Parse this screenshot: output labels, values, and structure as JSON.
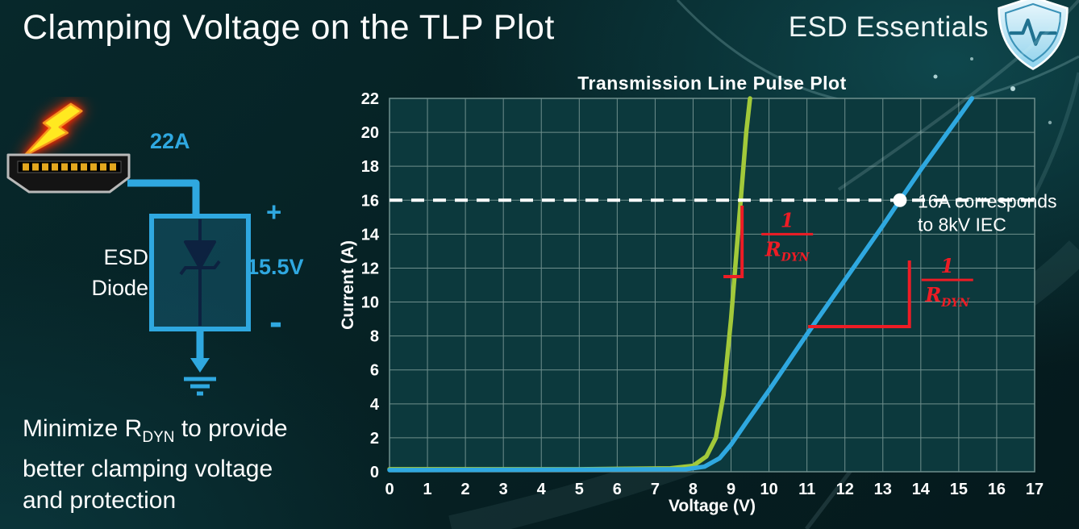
{
  "page": {
    "title": "Clamping Voltage on the TLP Plot",
    "brand": "ESD Essentials"
  },
  "diagram": {
    "surge_current": "22A",
    "device_line1": "ESD",
    "device_line2": "Diode",
    "plus_sign": "+",
    "clamp_voltage": "15.5V",
    "minus_sign": "-"
  },
  "footnote": {
    "line1_pre": "Minimize R",
    "line1_sub": "DYN",
    "line1_post": " to provide",
    "line2": "better clamping voltage",
    "line3": "and protection"
  },
  "chart_data": {
    "type": "line",
    "title": "Transmission Line Pulse Plot",
    "xlabel": "Voltage (V)",
    "ylabel": "Current (A)",
    "xlim": [
      0,
      17
    ],
    "ylim": [
      0,
      22
    ],
    "x_ticks": [
      0,
      1,
      2,
      3,
      4,
      5,
      6,
      7,
      8,
      9,
      10,
      11,
      12,
      13,
      14,
      15,
      16,
      17
    ],
    "y_ticks": [
      0,
      2,
      4,
      6,
      8,
      10,
      12,
      14,
      16,
      18,
      20,
      22
    ],
    "grid": true,
    "legend": "none",
    "plot_bg": "#0c393d",
    "grid_color": "#6f8f8d",
    "series": [
      {
        "id": "green-curve",
        "color": "#a2c93a",
        "points": [
          [
            0,
            0.15
          ],
          [
            5,
            0.15
          ],
          [
            7.4,
            0.2
          ],
          [
            8.0,
            0.35
          ],
          [
            8.35,
            0.9
          ],
          [
            8.6,
            2
          ],
          [
            8.8,
            4.5
          ],
          [
            9.0,
            9
          ],
          [
            9.2,
            14.5
          ],
          [
            9.4,
            20
          ],
          [
            9.5,
            22
          ]
        ]
      },
      {
        "id": "blue-curve",
        "color": "#2fa8e0",
        "points": [
          [
            0,
            0.1
          ],
          [
            7.8,
            0.15
          ],
          [
            8.3,
            0.3
          ],
          [
            8.7,
            0.8
          ],
          [
            9.0,
            1.6
          ],
          [
            9.4,
            2.9
          ],
          [
            10,
            4.8
          ],
          [
            11,
            8.1
          ],
          [
            12,
            11.3
          ],
          [
            13,
            14.5
          ],
          [
            13.45,
            16
          ],
          [
            14,
            17.8
          ],
          [
            15,
            20.9
          ],
          [
            15.35,
            22
          ]
        ]
      }
    ],
    "reference_line": {
      "y": 16,
      "style": "dashed",
      "color": "#ffffff"
    },
    "marker": {
      "x": 13.45,
      "y": 16,
      "color": "#ffffff"
    },
    "marker_label": [
      "16A corresponds",
      "to 8kV IEC"
    ],
    "annotations": [
      {
        "id": "rdyn-green",
        "numerator": "1",
        "denominator": "R",
        "denominator_sub": "DYN",
        "color": "#ee1c25",
        "points": [
          [
            8.8,
            11.5
          ],
          [
            9.29,
            11.5
          ],
          [
            9.29,
            15.68
          ]
        ],
        "label_anchor": [
          10.48,
          14.0
        ]
      },
      {
        "id": "rdyn-blue",
        "numerator": "1",
        "denominator": "R",
        "denominator_sub": "DYN",
        "color": "#ee1c25",
        "points": [
          [
            11.03,
            8.55
          ],
          [
            13.7,
            8.55
          ],
          [
            13.7,
            12.45
          ]
        ],
        "label_anchor": [
          14.7,
          11.3
        ]
      }
    ]
  }
}
